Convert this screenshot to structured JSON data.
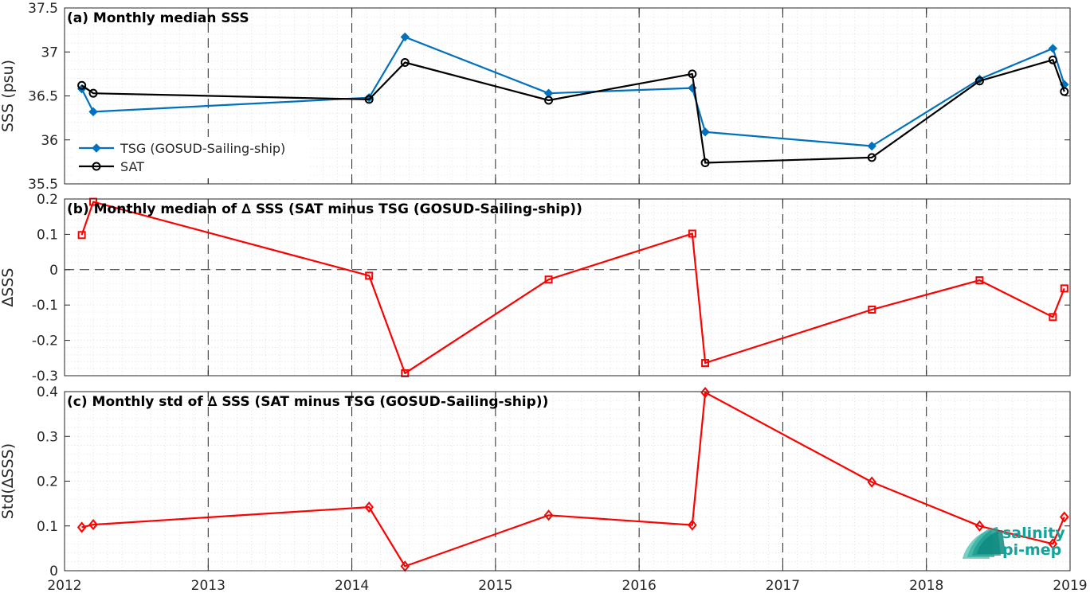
{
  "x_tick_labels": [
    "2012",
    "2013",
    "2014",
    "2015",
    "2016",
    "2017",
    "2018",
    "2019"
  ],
  "logo": {
    "line1": "salinity",
    "line2": "pi-mep"
  },
  "chart_data": [
    {
      "type": "line",
      "title": "(a) Monthly median SSS",
      "xlabel": "",
      "ylabel": "SSS (psu)",
      "xlim": [
        2012,
        2019
      ],
      "ylim": [
        35.5,
        37.5
      ],
      "yticks": [
        "35.5",
        "36",
        "36.5",
        "37",
        "37.5"
      ],
      "grid": true,
      "legend_position": "lower-left",
      "series": [
        {
          "name": "TSG (GOSUD-Sailing-ship)",
          "color": "#0072BD",
          "marker": "diamond-filled",
          "x": [
            2012.12,
            2012.2,
            2014.12,
            2014.37,
            2015.37,
            2016.37,
            2016.46,
            2017.62,
            2018.37,
            2018.88,
            2018.96
          ],
          "y": [
            36.58,
            36.32,
            36.48,
            37.17,
            36.53,
            36.59,
            36.09,
            35.93,
            36.69,
            37.04,
            36.63
          ]
        },
        {
          "name": "SAT",
          "color": "#000000",
          "marker": "circle-open",
          "x": [
            2012.12,
            2012.2,
            2014.12,
            2014.37,
            2015.37,
            2016.37,
            2016.46,
            2017.62,
            2018.37,
            2018.88,
            2018.96
          ],
          "y": [
            36.62,
            36.53,
            36.46,
            36.88,
            36.45,
            36.75,
            35.74,
            35.8,
            36.67,
            36.91,
            36.55
          ]
        }
      ]
    },
    {
      "type": "line",
      "title": "(b) Monthly median of ∆ SSS (SAT minus TSG (GOSUD-Sailing-ship))",
      "xlabel": "",
      "ylabel": "∆SSS",
      "xlim": [
        2012,
        2019
      ],
      "ylim": [
        -0.3,
        0.2
      ],
      "yticks": [
        "-0.3",
        "-0.2",
        "-0.1",
        "0",
        "0.1",
        "0.2"
      ],
      "grid": true,
      "zero_line": true,
      "series": [
        {
          "color": "#FF0000",
          "marker": "square-open",
          "x": [
            2012.12,
            2012.2,
            2014.12,
            2014.37,
            2015.37,
            2016.37,
            2016.46,
            2017.62,
            2018.37,
            2018.88,
            2018.96
          ],
          "y": [
            0.098,
            0.192,
            -0.017,
            -0.293,
            -0.028,
            0.102,
            -0.264,
            -0.113,
            -0.03,
            -0.134,
            -0.053
          ]
        }
      ]
    },
    {
      "type": "line",
      "title": "(c) Monthly std of ∆ SSS (SAT minus TSG (GOSUD-Sailing-ship))",
      "xlabel": "",
      "ylabel": "Std(∆SSS)",
      "xlim": [
        2012,
        2019
      ],
      "ylim": [
        0,
        0.4
      ],
      "yticks": [
        "0",
        "0.1",
        "0.2",
        "0.3",
        "0.4"
      ],
      "grid": true,
      "series": [
        {
          "color": "#FF0000",
          "marker": "diamond-open",
          "x": [
            2012.12,
            2012.2,
            2014.12,
            2014.37,
            2015.37,
            2016.37,
            2016.46,
            2017.62,
            2018.37,
            2018.88,
            2018.96
          ],
          "y": [
            0.097,
            0.103,
            0.142,
            0.01,
            0.124,
            0.102,
            0.398,
            0.198,
            0.1,
            0.06,
            0.12
          ]
        }
      ]
    }
  ]
}
